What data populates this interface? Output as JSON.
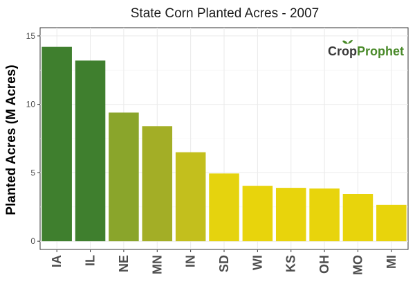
{
  "chart_data": {
    "type": "bar",
    "title": "State Corn Planted Acres - 2007",
    "xlabel": "",
    "ylabel": "Planted Acres (M Acres)",
    "categories": [
      "IA",
      "IL",
      "NE",
      "MN",
      "IN",
      "SD",
      "WI",
      "KS",
      "OH",
      "MO",
      "MI"
    ],
    "values": [
      14.2,
      13.2,
      9.4,
      8.4,
      6.5,
      4.95,
      4.05,
      3.9,
      3.85,
      3.45,
      2.65
    ],
    "bar_colors": [
      "#3f7f2e",
      "#3f7f2e",
      "#8aa52b",
      "#a3ae26",
      "#c3bf1d",
      "#e5d30e",
      "#e8d40c",
      "#e8d40c",
      "#e8d40c",
      "#e8d40c",
      "#e8d40c"
    ],
    "ylim": [
      -0.6,
      15.6
    ],
    "yticks": [
      0,
      5,
      10,
      15
    ],
    "grid": true,
    "legend": "none"
  },
  "logo": {
    "part1": "Crop",
    "part2": "Prophet",
    "color1": "#3a3a3a",
    "color2": "#4a8a2a"
  }
}
